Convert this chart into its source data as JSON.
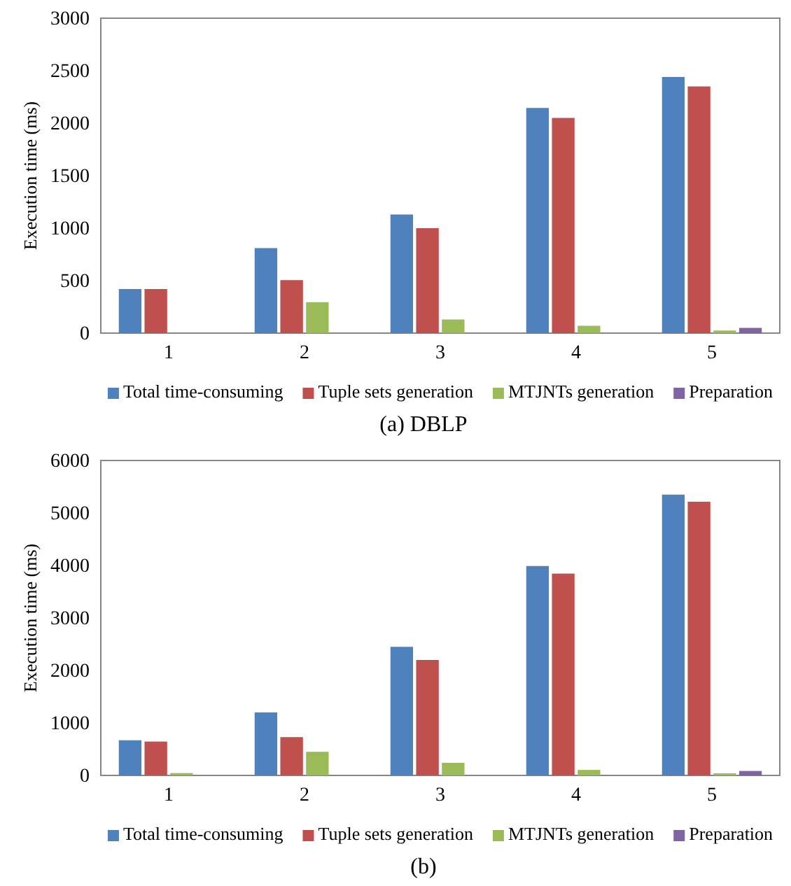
{
  "chart_data": [
    {
      "type": "bar",
      "title": "(a)  DBLP",
      "ylabel": "Execution  time  (ms)",
      "categories": [
        "1",
        "2",
        "3",
        "4",
        "5"
      ],
      "ylim": [
        0,
        3000
      ],
      "yticks": [
        0,
        500,
        1000,
        1500,
        2000,
        2500,
        3000
      ],
      "grid": false,
      "legend": "bottom",
      "series": [
        {
          "name": "Total time-consuming",
          "color": "#4f81bd",
          "values": [
            420,
            810,
            1130,
            2145,
            2440
          ]
        },
        {
          "name": "Tuple sets generation",
          "color": "#c0504d",
          "values": [
            420,
            505,
            1000,
            2050,
            2350
          ]
        },
        {
          "name": "MTJNTs generation",
          "color": "#9bbb59",
          "values": [
            0,
            295,
            130,
            70,
            25
          ]
        },
        {
          "name": "Preparation",
          "color": "#8064a2",
          "values": [
            0,
            0,
            0,
            0,
            50
          ]
        }
      ]
    },
    {
      "type": "bar",
      "title": "(b)",
      "ylabel": "Execution  time  (ms)",
      "categories": [
        "1",
        "2",
        "3",
        "4",
        "5"
      ],
      "ylim": [
        0,
        6000
      ],
      "yticks": [
        0,
        1000,
        2000,
        3000,
        4000,
        5000,
        6000
      ],
      "grid": false,
      "legend": "bottom",
      "series": [
        {
          "name": "Total time-consuming",
          "color": "#4f81bd",
          "values": [
            670,
            1200,
            2450,
            3990,
            5350
          ]
        },
        {
          "name": "Tuple sets generation",
          "color": "#c0504d",
          "values": [
            645,
            730,
            2200,
            3845,
            5215
          ]
        },
        {
          "name": "MTJNTs generation",
          "color": "#9bbb59",
          "values": [
            45,
            450,
            240,
            105,
            40
          ]
        },
        {
          "name": "Preparation",
          "color": "#8064a2",
          "values": [
            0,
            0,
            0,
            0,
            85
          ]
        }
      ]
    }
  ]
}
